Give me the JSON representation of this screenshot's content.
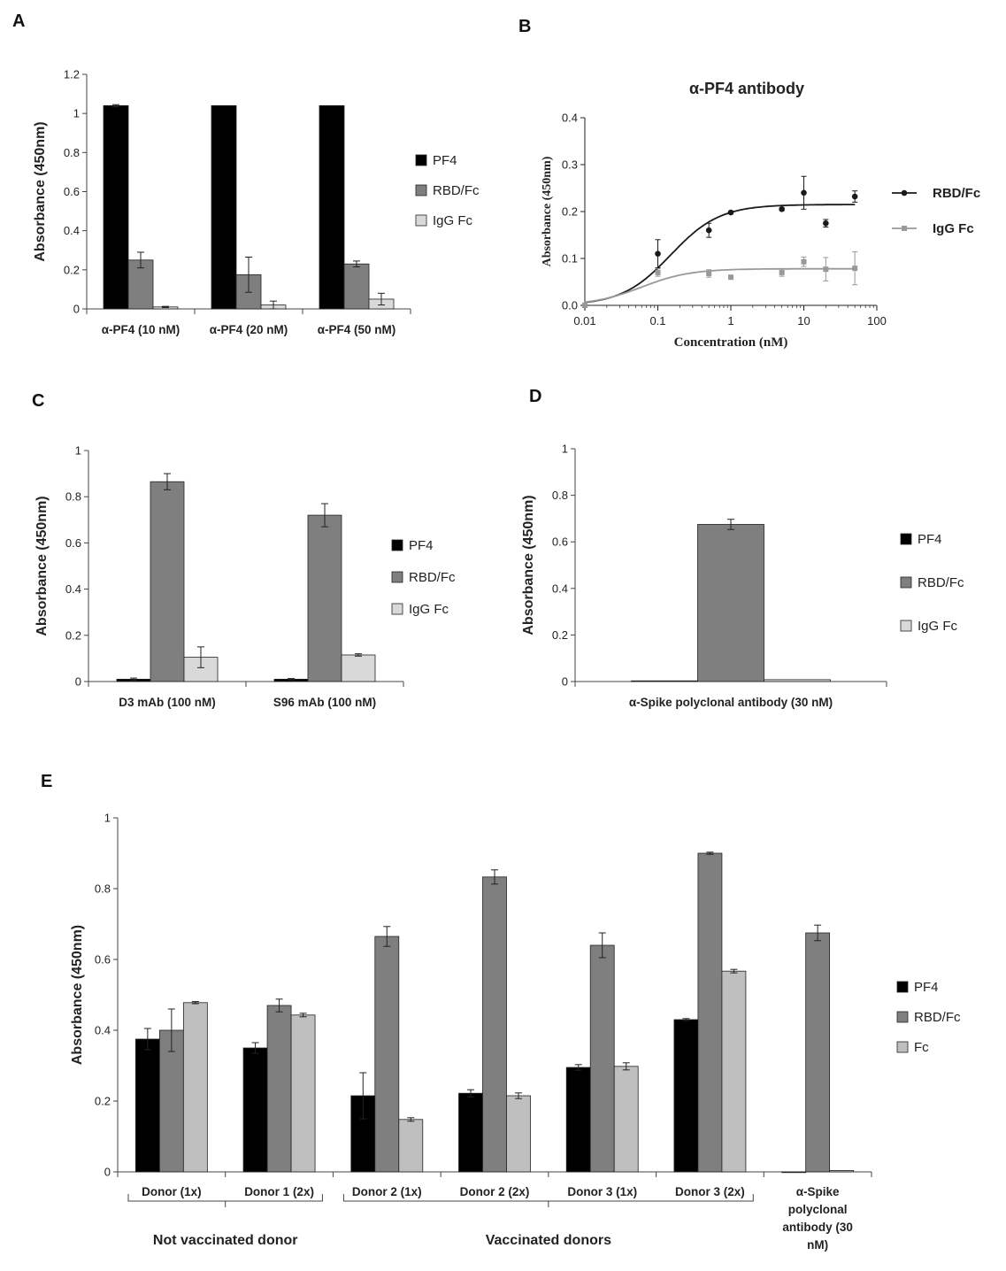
{
  "panel_labels": {
    "a": "A",
    "b": "B",
    "c": "C",
    "d": "D",
    "e": "E"
  },
  "colors": {
    "PF4": "#000000",
    "RBD/Fc": "#7f7f7f",
    "IgG Fc": "#d9d9d9",
    "Fc": "#bfbfbf",
    "line_rbd": "#1a1a1a",
    "line_igg": "#999999"
  },
  "chart_data": [
    {
      "id": "A",
      "type": "bar",
      "ylabel": "Absorbance (450nm)",
      "ylim": [
        0,
        1.2
      ],
      "yticks": [
        "0",
        "0.2",
        "0.4",
        "0.6",
        "0.8",
        "1",
        "1.2"
      ],
      "categories": [
        "α-PF4 (10 nM)",
        "α-PF4 (20 nM)",
        "α-PF4 (50 nM)"
      ],
      "series": [
        {
          "name": "PF4",
          "values": [
            1.04,
            1.04,
            1.04
          ],
          "errors": [
            0.005,
            0,
            0
          ]
        },
        {
          "name": "RBD/Fc",
          "values": [
            0.25,
            0.175,
            0.23
          ],
          "errors": [
            0.04,
            0.09,
            0.015
          ]
        },
        {
          "name": "IgG Fc",
          "values": [
            0.01,
            0.02,
            0.05
          ],
          "errors": [
            0.003,
            0.02,
            0.03
          ]
        }
      ],
      "legend": [
        "PF4",
        "RBD/Fc",
        "IgG Fc"
      ]
    },
    {
      "id": "B",
      "type": "scatter",
      "title": "α-PF4 antibody",
      "xlabel": "Concentration (nM)",
      "ylabel": "Absorbance (450nm)",
      "xscale": "log",
      "xlim": [
        0.01,
        100
      ],
      "ylim": [
        0,
        0.4
      ],
      "xticks": [
        "0.01",
        "0.1",
        "1",
        "10",
        "100"
      ],
      "yticks": [
        "0.0",
        "0.1",
        "0.2",
        "0.3",
        "0.4"
      ],
      "series": [
        {
          "name": "RBD/Fc",
          "x": [
            0.01,
            0.1,
            0.5,
            1,
            5,
            10,
            20,
            50
          ],
          "y": [
            0.0,
            0.11,
            0.16,
            0.198,
            0.205,
            0.24,
            0.175,
            0.232
          ],
          "errors": [
            0,
            0.03,
            0.015,
            0.003,
            0.003,
            0.035,
            0.008,
            0.012
          ],
          "fit": {
            "top": 0.215,
            "ec50": 0.15,
            "hill": 1.3
          }
        },
        {
          "name": "IgG Fc",
          "x": [
            0.01,
            0.1,
            0.5,
            1,
            5,
            10,
            20,
            50
          ],
          "y": [
            0.0,
            0.07,
            0.068,
            0.06,
            0.07,
            0.093,
            0.077,
            0.079
          ],
          "errors": [
            0,
            0.008,
            0.008,
            0.003,
            0.008,
            0.01,
            0.025,
            0.035
          ],
          "fit": {
            "top": 0.078,
            "ec50": 0.06,
            "hill": 1.3
          }
        }
      ],
      "legend": [
        "RBD/Fc",
        "IgG Fc"
      ]
    },
    {
      "id": "C",
      "type": "bar",
      "ylabel": "Absorbance (450nm)",
      "ylim": [
        0,
        1
      ],
      "yticks": [
        "0",
        "0.2",
        "0.4",
        "0.6",
        "0.8",
        "1"
      ],
      "categories": [
        "D3 mAb (100 nM)",
        "S96 mAb (100 nM)"
      ],
      "series": [
        {
          "name": "PF4",
          "values": [
            0.01,
            0.01
          ],
          "errors": [
            0.005,
            0.003
          ]
        },
        {
          "name": "RBD/Fc",
          "values": [
            0.865,
            0.72
          ],
          "errors": [
            0.035,
            0.05
          ]
        },
        {
          "name": "IgG Fc",
          "values": [
            0.105,
            0.115
          ],
          "errors": [
            0.045,
            0.005
          ]
        }
      ],
      "legend": [
        "PF4",
        "RBD/Fc",
        "IgG Fc"
      ]
    },
    {
      "id": "D",
      "type": "bar",
      "ylabel": "Absorbance (450nm)",
      "ylim": [
        0,
        1
      ],
      "yticks": [
        "0",
        "0.2",
        "0.4",
        "0.6",
        "0.8",
        "1"
      ],
      "categories": [
        "α-Spike polyclonal antibody (30 nM)"
      ],
      "series": [
        {
          "name": "PF4",
          "values": [
            0.003
          ],
          "errors": [
            0
          ]
        },
        {
          "name": "RBD/Fc",
          "values": [
            0.675
          ],
          "errors": [
            0.022
          ]
        },
        {
          "name": "IgG Fc",
          "values": [
            0.008
          ],
          "errors": [
            0
          ]
        }
      ],
      "legend": [
        "PF4",
        "RBD/Fc",
        "IgG Fc"
      ]
    },
    {
      "id": "E",
      "type": "bar",
      "ylabel": "Absorbance (450nm)",
      "ylim": [
        0,
        1
      ],
      "yticks": [
        "0",
        "0.2",
        "0.4",
        "0.6",
        "0.8",
        "1"
      ],
      "categories": [
        "Donor (1x)",
        "Donor 1 (2x)",
        "Donor 2 (1x)",
        "Donor 2 (2x)",
        "Donor 3 (1x)",
        "Donor 3 (2x)",
        "α-Spike polyclonal antibody (30 nM)"
      ],
      "series": [
        {
          "name": "PF4",
          "values": [
            0.375,
            0.35,
            0.215,
            0.222,
            0.295,
            0.43,
            0.0
          ],
          "errors": [
            0.03,
            0.015,
            0.065,
            0.01,
            0.008,
            0.003,
            0
          ]
        },
        {
          "name": "RBD/Fc",
          "values": [
            0.4,
            0.47,
            0.665,
            0.833,
            0.64,
            0.9,
            0.675
          ],
          "errors": [
            0.06,
            0.018,
            0.028,
            0.02,
            0.035,
            0.003,
            0.022
          ]
        },
        {
          "name": "Fc",
          "values": [
            0.478,
            0.443,
            0.148,
            0.215,
            0.298,
            0.567,
            0.004
          ],
          "errors": [
            0.003,
            0.005,
            0.005,
            0.008,
            0.01,
            0.005,
            0
          ]
        }
      ],
      "legend": [
        "PF4",
        "RBD/Fc",
        "Fc"
      ],
      "groups": [
        {
          "label": "Not vaccinated donor",
          "from": 0,
          "to": 1
        },
        {
          "label": "Vaccinated donors",
          "from": 2,
          "to": 5
        }
      ],
      "last_category_lines": [
        "α-Spike",
        "polyclonal",
        "antibody (30",
        "nM)"
      ]
    }
  ]
}
